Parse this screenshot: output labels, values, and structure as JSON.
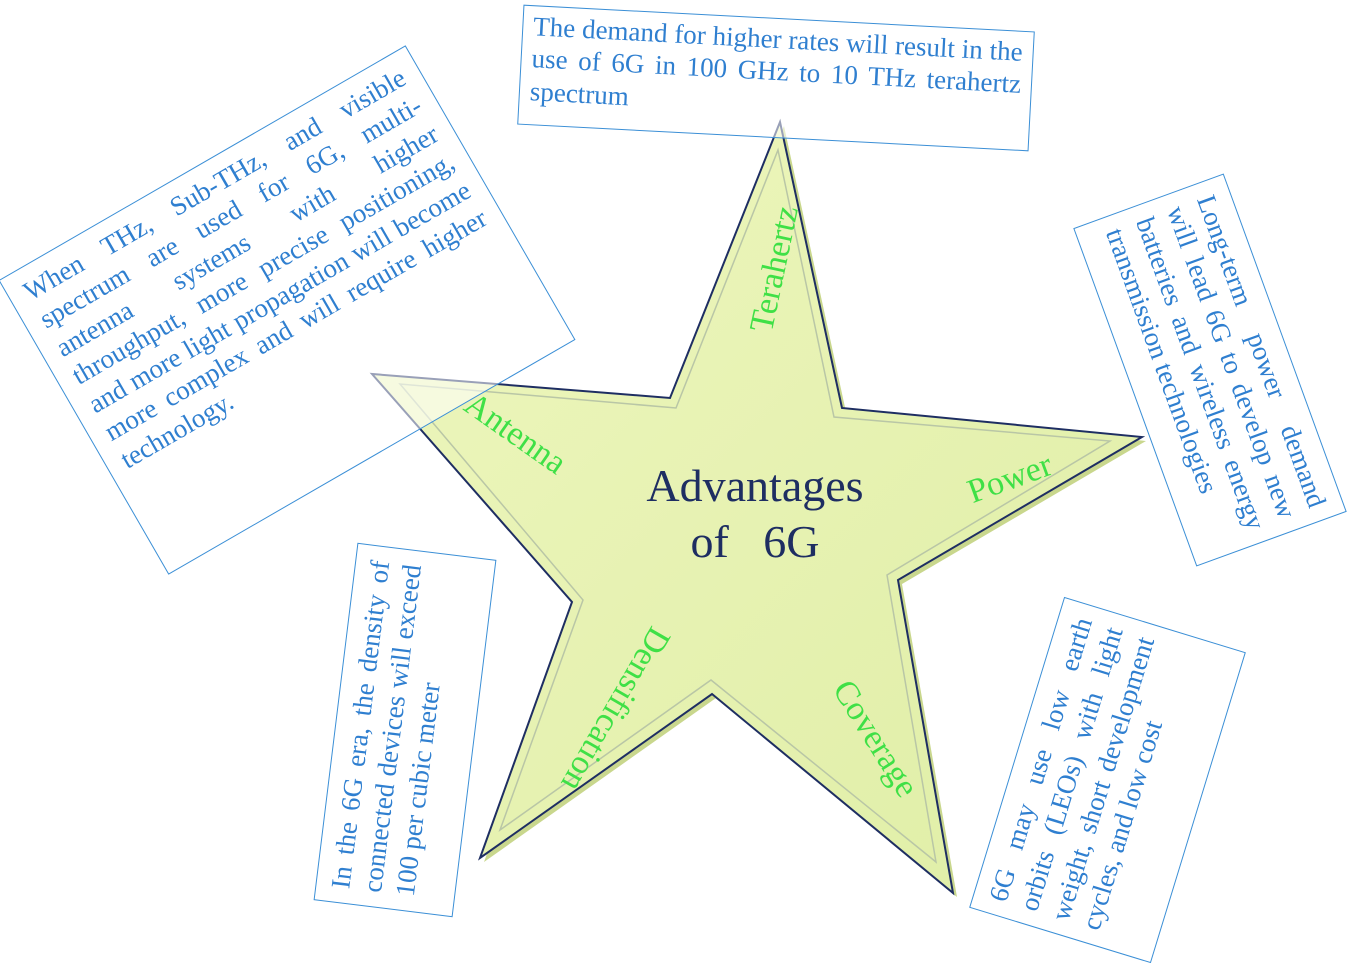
{
  "center": {
    "line1": "Advantages",
    "line2": "of   6G"
  },
  "arms": {
    "terahertz": "Terahertz",
    "antenna": "Antenna",
    "power": "Power",
    "densification": "Densification",
    "coverage": "Coverage"
  },
  "notes": {
    "terahertz": "The demand for higher rates will result in the use of 6G in 100 GHz to 10 THz terahertz spectrum",
    "antenna": "When THz, Sub-THz, and visible spectrum are used for 6G, multi-antenna systems with higher throughput, more precise positioning, and more light propagation will become more complex and will require higher technology.",
    "power": "Long-term power demand will lead 6G to develop new batteries and wireless energy transmission technologies",
    "densification": "In the 6G era, the density of connected devices will exceed 100 per cubic meter",
    "coverage": "6G may use low earth orbits (LEOs) with light weight, short development cycles, and low cost"
  },
  "colors": {
    "star_fill": "#e9f3b4",
    "star_outline": "#1e2e62",
    "arm_label": "#3fe046",
    "note_text": "#2f7fd0",
    "note_border": "#3b8fd6",
    "center_text": "#1e2e62"
  }
}
